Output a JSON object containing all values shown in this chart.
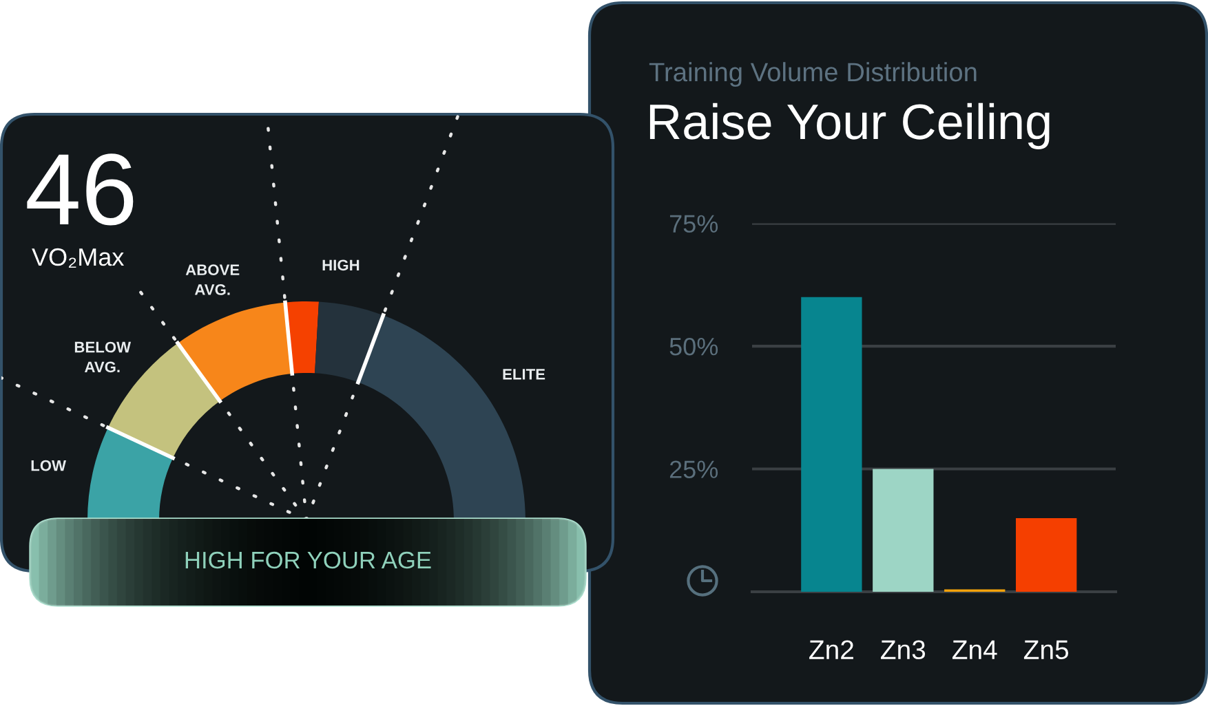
{
  "chart_data": [
    {
      "type": "donut",
      "title": "46",
      "subtitle": "VO₂Max",
      "categories": [
        "LOW",
        "BELOW AVG.",
        "ABOVE AVG.",
        "HIGH",
        null,
        "ELITE"
      ],
      "values": [
        13.9,
        16.1,
        16.9,
        4.9,
        9.6,
        38.6
      ],
      "colors": [
        "#3ba3a6",
        "#c4c27e",
        "#f7861a",
        "#f54100",
        "#24323c",
        "#2e4453"
      ],
      "annotations": [
        "HIGH FOR YOUR AGE"
      ]
    },
    {
      "type": "bar",
      "title": "Raise Your Ceiling",
      "subtitle": "Training Volume Distribution",
      "categories": [
        "Zn2",
        "Zn3",
        "Zn4",
        "Zn5"
      ],
      "values": [
        60,
        25,
        0.5,
        15
      ],
      "colors": [
        "#07858f",
        "#9dd5c5",
        "#f2a20c",
        "#f53f00"
      ],
      "ylim": [
        0,
        75
      ],
      "yticks": [
        {
          "value": 0,
          "label": null
        },
        {
          "value": 25,
          "label": "25%"
        },
        {
          "value": 50,
          "label": "50%"
        },
        {
          "value": 75,
          "label": "75%"
        }
      ],
      "grid": "y"
    }
  ]
}
